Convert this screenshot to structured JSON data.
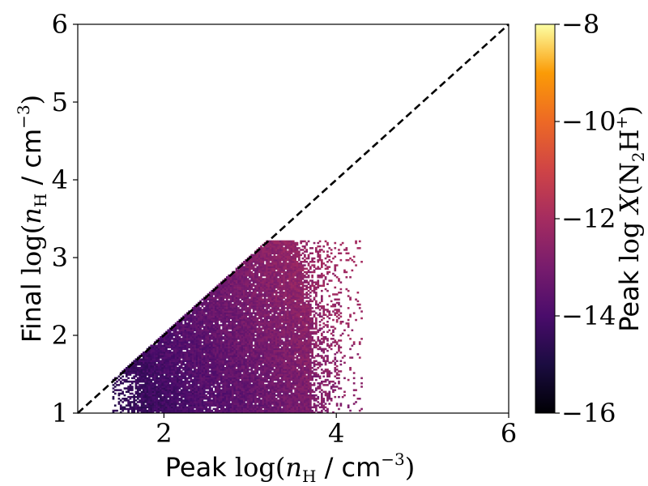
{
  "chart_data": {
    "type": "heatmap",
    "xlabel": {
      "prefix": "Peak ",
      "log": "log(",
      "var": "n",
      "sub": "H",
      "unit": " / cm",
      "exp": "−3",
      "close": ")"
    },
    "ylabel": {
      "prefix": "Final ",
      "log": "log(",
      "var": "n",
      "sub": "H",
      "unit": " / cm",
      "exp": "−3",
      "close": ")"
    },
    "colorbar_label": {
      "prefix": "Peak ",
      "log": "log ",
      "var": "X",
      "open": "(N",
      "sub": "2",
      "mid": "H",
      "sup": "+",
      "close": ")"
    },
    "xlim": [
      1,
      6
    ],
    "ylim": [
      1,
      6
    ],
    "clim": [
      -16,
      -8
    ],
    "x_ticks": [
      2,
      4,
      6
    ],
    "x_tick_labels": [
      "2",
      "4",
      "6"
    ],
    "y_ticks": [
      1,
      2,
      3,
      4,
      5,
      6
    ],
    "y_tick_labels": [
      "1",
      "2",
      "3",
      "4",
      "5",
      "6"
    ],
    "colorbar_ticks": [
      -16,
      -14,
      -12,
      -10,
      -8
    ],
    "colorbar_tick_labels": [
      "−16",
      "−14",
      "−12",
      "−10",
      "−8"
    ],
    "colormap": "inferno",
    "reference_line": {
      "style": "dashed",
      "color": "#000000",
      "points": [
        [
          1,
          1
        ],
        [
          6,
          6
        ]
      ]
    },
    "grid": false,
    "density_region": {
      "x_range": [
        1.4,
        4.3
      ],
      "y_range": [
        1.0,
        3.2
      ],
      "upper_bound": "y <= x",
      "typical_value": -13.0,
      "min_value": -15.0,
      "max_value": -12.0
    }
  }
}
